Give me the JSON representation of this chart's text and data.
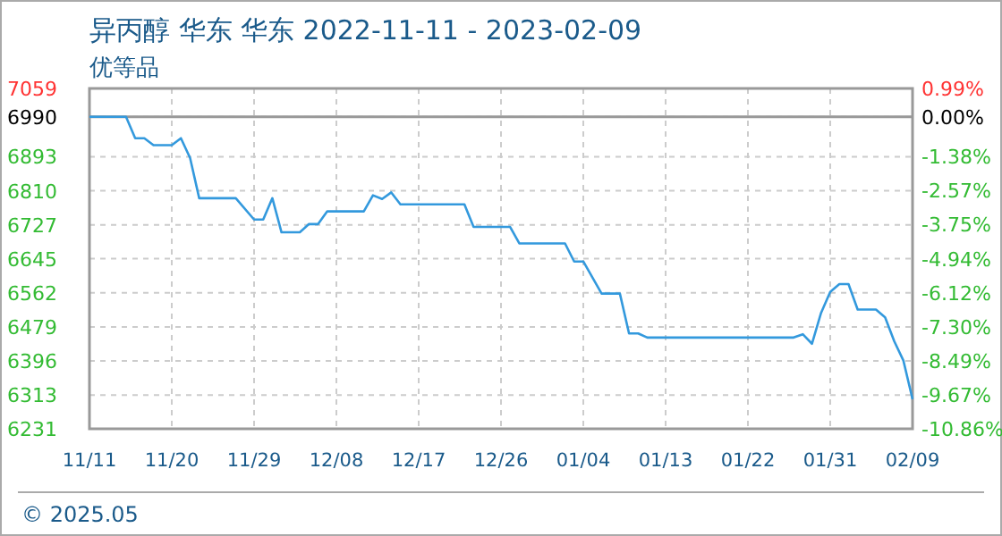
{
  "chart_data": {
    "type": "line",
    "title": "异丙醇 华东 华东 2022-11-11 - 2023-02-09",
    "subtitle": "优等品",
    "x": [
      "2022-11-11",
      "2022-11-15",
      "2022-11-16",
      "2022-11-17",
      "2022-11-18",
      "2022-11-20",
      "2022-11-21",
      "2022-11-22",
      "2022-11-23",
      "2022-11-27",
      "2022-11-29",
      "2022-11-30",
      "2022-12-01",
      "2022-12-02",
      "2022-12-04",
      "2022-12-05",
      "2022-12-06",
      "2022-12-07",
      "2022-12-11",
      "2022-12-12",
      "2022-12-13",
      "2022-12-14",
      "2022-12-15",
      "2022-12-22",
      "2022-12-23",
      "2022-12-27",
      "2022-12-28",
      "2023-01-02",
      "2023-01-03",
      "2023-01-04",
      "2023-01-06",
      "2023-01-08",
      "2023-01-09",
      "2023-01-10",
      "2023-01-11",
      "2023-01-27",
      "2023-01-28",
      "2023-01-29",
      "2023-01-30",
      "2023-01-31",
      "2023-02-01",
      "2023-02-02",
      "2023-02-03",
      "2023-02-05",
      "2023-02-06",
      "2023-02-07",
      "2023-02-08",
      "2023-02-09"
    ],
    "series": [
      {
        "color": "#3399dd",
        "values": [
          6990,
          6990,
          6938,
          6938,
          6921,
          6921,
          6938,
          6890,
          6792,
          6792,
          6740,
          6740,
          6792,
          6709,
          6709,
          6729,
          6729,
          6760,
          6760,
          6799,
          6790,
          6806,
          6777,
          6777,
          6722,
          6722,
          6682,
          6682,
          6638,
          6638,
          6560,
          6560,
          6463,
          6463,
          6453,
          6453,
          6461,
          6438,
          6513,
          6564,
          6583,
          6583,
          6521,
          6521,
          6502,
          6444,
          6397,
          6303
        ]
      }
    ],
    "xlim": [
      "2022-11-11",
      "2023-02-09"
    ],
    "xticks": [
      {
        "value": "2022-11-11",
        "label": "11/11"
      },
      {
        "value": "2022-11-20",
        "label": "11/20"
      },
      {
        "value": "2022-11-29",
        "label": "11/29"
      },
      {
        "value": "2022-12-08",
        "label": "12/08"
      },
      {
        "value": "2022-12-17",
        "label": "12/17"
      },
      {
        "value": "2022-12-26",
        "label": "12/26"
      },
      {
        "value": "2023-01-04",
        "label": "01/04"
      },
      {
        "value": "2023-01-13",
        "label": "01/13"
      },
      {
        "value": "2023-01-22",
        "label": "01/22"
      },
      {
        "value": "2023-01-31",
        "label": "01/31"
      },
      {
        "value": "2023-02-09",
        "label": "02/09"
      }
    ],
    "ylim": [
      6231,
      7059
    ],
    "yticks": [
      7059,
      6990,
      6893,
      6810,
      6727,
      6645,
      6562,
      6479,
      6396,
      6313,
      6231
    ],
    "y2lim": [
      -10.86,
      0.99
    ],
    "y2ticks": [
      {
        "value": 0.99,
        "label": "0.99%"
      },
      {
        "value": 0,
        "label": "0.00%"
      },
      {
        "value": -1.38,
        "label": "-1.38%"
      },
      {
        "value": -2.57,
        "label": "-2.57%"
      },
      {
        "value": -3.75,
        "label": "-3.75%"
      },
      {
        "value": -4.94,
        "label": "-4.94%"
      },
      {
        "value": -6.12,
        "label": "-6.12%"
      },
      {
        "value": -7.3,
        "label": "-7.30%"
      },
      {
        "value": -8.49,
        "label": "-8.49%"
      },
      {
        "value": -9.67,
        "label": "-9.67%"
      },
      {
        "value": -10.86,
        "label": "-10.86%"
      }
    ],
    "ref_lines": [
      {
        "axis": "y",
        "value": 6990,
        "color": "#999999"
      }
    ],
    "grid": true,
    "marker": "none",
    "line_style": "solid",
    "annotations": [
      "© 2025.05"
    ]
  }
}
